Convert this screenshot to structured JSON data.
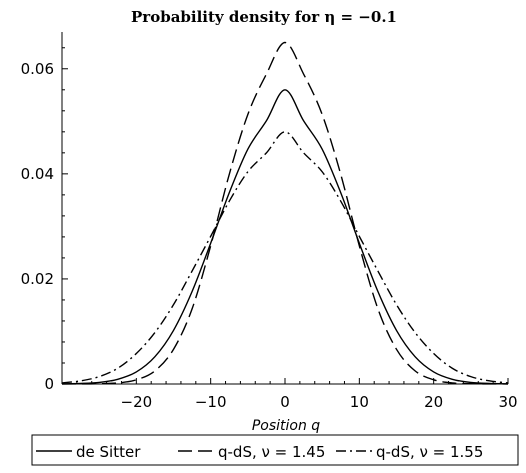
{
  "chart_data": {
    "type": "line",
    "title": "Probability density for η = −0.1",
    "xlabel": "Position q",
    "ylabel": "",
    "xlim": [
      -30,
      30
    ],
    "ylim": [
      0,
      0.067
    ],
    "xticks": [
      -20,
      -10,
      0,
      10,
      20,
      30
    ],
    "xtick_labels": [
      "−20",
      "−10",
      "0",
      "10",
      "20",
      "30"
    ],
    "yticks": [
      0,
      0.02,
      0.04,
      0.06
    ],
    "ytick_labels": [
      "0",
      "0.02",
      "0.04",
      "0.06"
    ],
    "grid": false,
    "legend_position": "bottom",
    "x": [
      -30,
      -27.5,
      -25,
      -22.5,
      -20,
      -17.5,
      -15,
      -12.5,
      -10,
      -7.5,
      -5,
      -2.5,
      0,
      2.5,
      5,
      7.5,
      10,
      12.5,
      15,
      17.5,
      20,
      22.5,
      25,
      27.5,
      30
    ],
    "series": [
      {
        "name": "de Sitter",
        "style": "solid",
        "values": [
          3e-05,
          0.0001,
          0.0003,
          0.0009,
          0.0023,
          0.0052,
          0.0102,
          0.0176,
          0.0268,
          0.0364,
          0.0447,
          0.0501,
          0.056,
          0.0501,
          0.0447,
          0.0364,
          0.0268,
          0.0176,
          0.0102,
          0.0052,
          0.0023,
          0.0009,
          0.0003,
          0.0001,
          3e-05
        ]
      },
      {
        "name": "q-dS, ν = 1.45",
        "style": "dashed",
        "values": [
          2e-06,
          1e-05,
          5e-05,
          0.0002,
          0.0008,
          0.0025,
          0.0066,
          0.0143,
          0.0263,
          0.0399,
          0.0513,
          0.059,
          0.065,
          0.059,
          0.0513,
          0.0399,
          0.0263,
          0.0143,
          0.0066,
          0.0025,
          0.0008,
          0.0002,
          5e-05,
          1e-05,
          2e-06
        ]
      },
      {
        "name": "q-dS, ν = 1.55",
        "style": "dashdot",
        "values": [
          0.0002,
          0.0006,
          0.0014,
          0.003,
          0.0058,
          0.0098,
          0.0151,
          0.0215,
          0.0281,
          0.0348,
          0.0404,
          0.044,
          0.048,
          0.044,
          0.0404,
          0.0348,
          0.0281,
          0.0215,
          0.0151,
          0.0098,
          0.0058,
          0.003,
          0.0014,
          0.0006,
          0.0002
        ]
      }
    ]
  }
}
